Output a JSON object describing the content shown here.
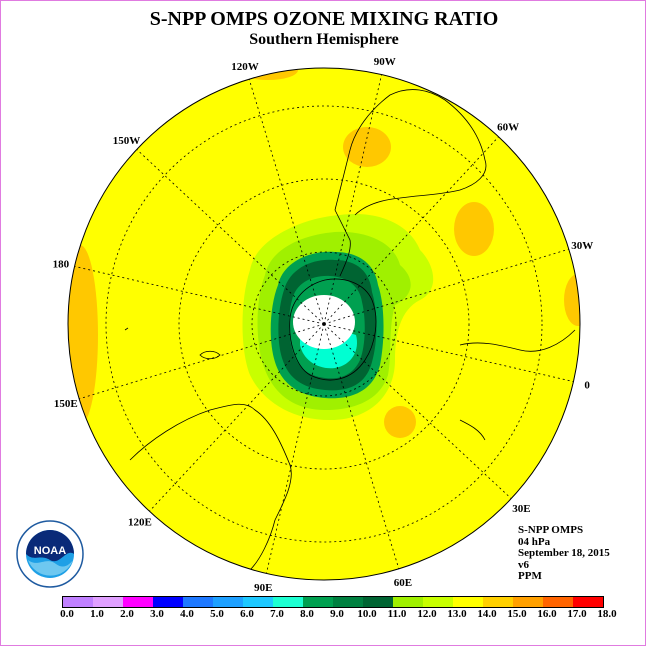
{
  "title": "S-NPP OMPS OZONE MIXING RATIO",
  "subtitle": "Southern Hemisphere",
  "longitude_labels": [
    "90W",
    "60W",
    "30W",
    "0",
    "30E",
    "60E",
    "90E",
    "120E",
    "150E",
    "180",
    "150W",
    "120W"
  ],
  "info": {
    "instrument": "S-NPP OMPS",
    "level": "04 hPa",
    "date": "September 18, 2015",
    "version": "v6",
    "units": "PPM"
  },
  "logo": {
    "text": "NOAA",
    "icon": "noaa-logo"
  },
  "colorbar": {
    "colors": [
      "#c080ff",
      "#e0a0ff",
      "#ff00ff",
      "#0000ff",
      "#1e78ff",
      "#1ea0ff",
      "#1ec8ff",
      "#1effd2",
      "#00a050",
      "#008040",
      "#006432",
      "#a0f000",
      "#c8ff00",
      "#ffff00",
      "#ffd000",
      "#ffa000",
      "#ff6400",
      "#ff0000",
      "#a06440"
    ],
    "tick_labels": [
      "0.0",
      "1.0",
      "2.0",
      "3.0",
      "4.0",
      "5.0",
      "6.0",
      "7.0",
      "8.0",
      "9.0",
      "10.0",
      "11.0",
      "12.0",
      "13.0",
      "14.0",
      "15.0",
      "16.0",
      "17.0",
      "18.0"
    ]
  },
  "colors": {
    "background_field": "#ffff00",
    "polar_hole": "#ffffff",
    "low_core": "#00ffd2",
    "vortex_edge": "#006432",
    "vortex_ring": "#00a050",
    "collar_light": "#c8ff00",
    "collar_lime": "#a0f000",
    "high_patch": "#ffc800"
  }
}
